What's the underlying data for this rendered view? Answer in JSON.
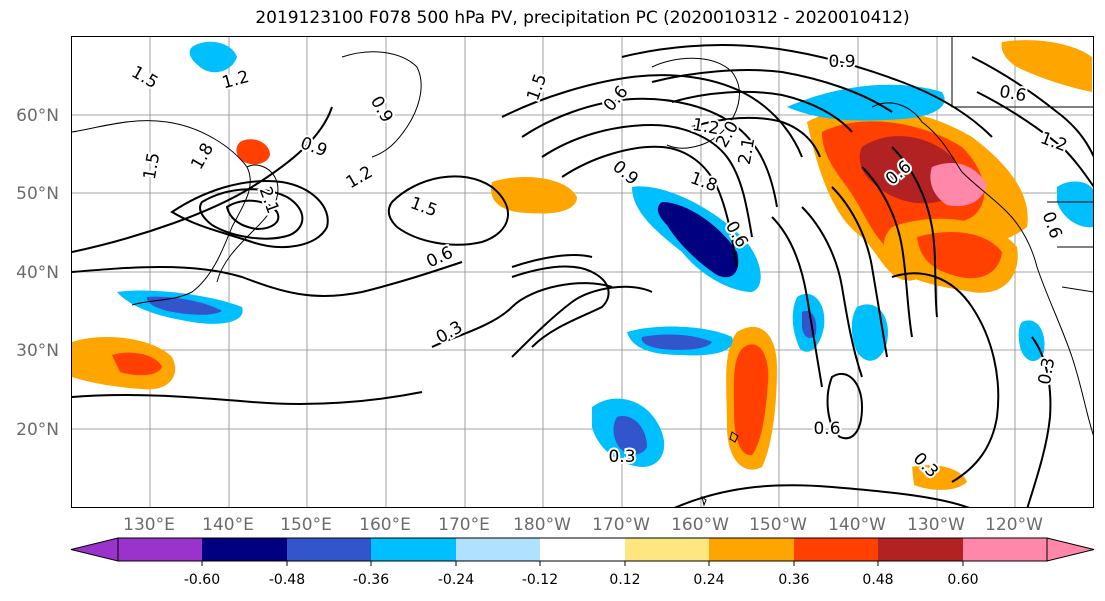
{
  "title": "2019123100 F078 500 hPa PV, precipitation PC (2020010312 - 2020010412)",
  "lat_labels": [
    "60°N",
    "50°N",
    "40°N",
    "30°N",
    "20°N"
  ],
  "lon_labels": [
    "130°E",
    "140°E",
    "150°E",
    "160°E",
    "170°E",
    "180°W",
    "170°W",
    "160°W",
    "150°W",
    "140°W",
    "130°W",
    "120°W"
  ],
  "contour_labels": [
    "1.5",
    "1.2",
    "0.9",
    "1.8",
    "2.1",
    "1.5",
    "1.2",
    "0.9",
    "1.5",
    "0.6",
    "0.3",
    "0.9",
    "1.5",
    "1.2",
    "0.6",
    "1.8",
    "2.1",
    "2.0",
    "0.6",
    "0.9",
    "0.6",
    "1.2",
    "0.6",
    "0.3",
    "0.6",
    "0.3",
    "0.3",
    "0.6"
  ],
  "colorbar": {
    "tick_labels": [
      "-0.60",
      "-0.48",
      "-0.36",
      "-0.24",
      "-0.12",
      "0.12",
      "0.24",
      "0.36",
      "0.48",
      "0.60"
    ],
    "colors": [
      "#9933cc",
      "#000080",
      "#3355cc",
      "#00bfff",
      "#b0e2ff",
      "#ffffff",
      "#ffe680",
      "#ffa500",
      "#ff4000",
      "#b22222",
      "#ff88aa"
    ]
  },
  "palette": {
    "land_line": "#000000",
    "contour": "#000000",
    "grid": "#888888"
  }
}
